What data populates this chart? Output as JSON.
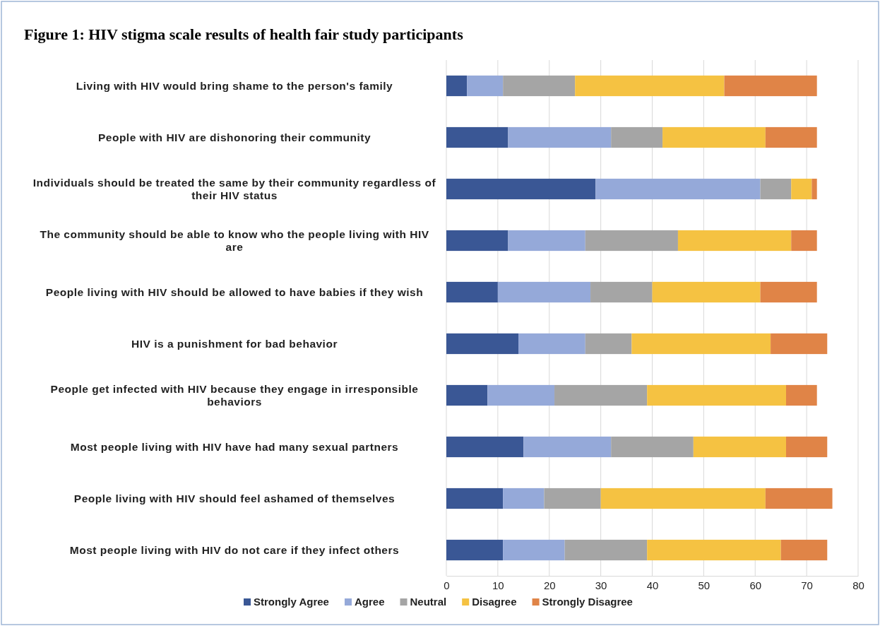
{
  "chart_data": {
    "type": "bar",
    "orientation": "horizontal",
    "stacked": true,
    "title": "Figure 1: HIV stigma scale results of health fair study participants",
    "categories": [
      "Living with HIV would bring shame to the person's family",
      "People with HIV are dishonoring their community",
      "Individuals should be treated the same by their community regardless of their HIV status",
      "The community should be able to know who the people living with HIV are",
      "People living with HIV should be allowed to have babies if they wish",
      "HIV is a punishment for bad behavior",
      "People get infected with HIV because they engage in irresponsible behaviors",
      "Most people living with HIV have had many sexual partners",
      "People living with HIV should feel ashamed of themselves",
      "Most people living with HIV do not care if they infect others"
    ],
    "series": [
      {
        "name": "Strongly Agree",
        "color": "#3a5795",
        "values": [
          4,
          12,
          29,
          12,
          10,
          14,
          8,
          15,
          11,
          11
        ]
      },
      {
        "name": "Agree",
        "color": "#95a9d9",
        "values": [
          7,
          20,
          32,
          15,
          18,
          13,
          13,
          17,
          8,
          12
        ]
      },
      {
        "name": "Neutral",
        "color": "#a5a5a5",
        "values": [
          14,
          10,
          6,
          18,
          12,
          9,
          18,
          16,
          11,
          16
        ]
      },
      {
        "name": "Disagree",
        "color": "#f5c242",
        "values": [
          29,
          20,
          4,
          22,
          21,
          27,
          27,
          18,
          32,
          26
        ]
      },
      {
        "name": "Strongly Disagree",
        "color": "#e08447",
        "values": [
          18,
          10,
          1,
          5,
          11,
          11,
          6,
          8,
          13,
          9
        ]
      }
    ],
    "xlim": [
      0,
      80
    ],
    "xticks": [
      0,
      10,
      20,
      30,
      40,
      50,
      60,
      70,
      80
    ],
    "grid": "x",
    "legend": "bottom"
  }
}
